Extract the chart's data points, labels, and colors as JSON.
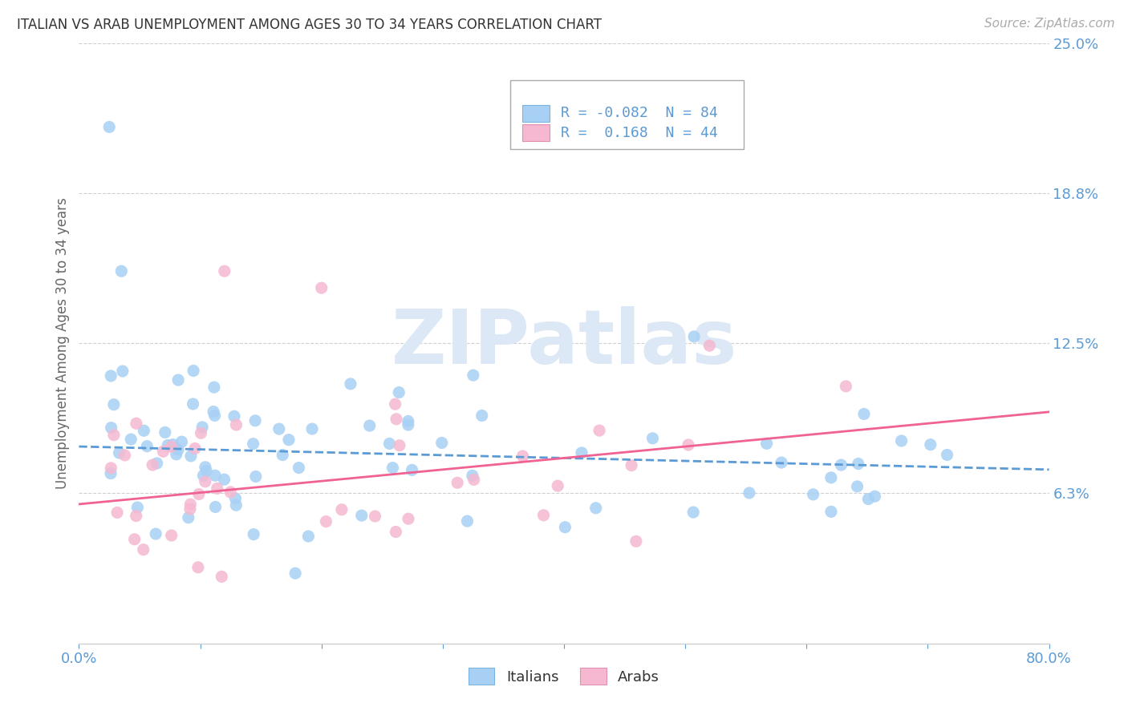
{
  "title": "ITALIAN VS ARAB UNEMPLOYMENT AMONG AGES 30 TO 34 YEARS CORRELATION CHART",
  "source": "Source: ZipAtlas.com",
  "ylabel": "Unemployment Among Ages 30 to 34 years",
  "xlim": [
    0.0,
    0.8
  ],
  "ylim": [
    0.0,
    0.25
  ],
  "ytick_positions": [
    0.0,
    0.0625,
    0.125,
    0.1875,
    0.25
  ],
  "ytick_labels": [
    "",
    "6.3%",
    "12.5%",
    "18.8%",
    "25.0%"
  ],
  "xtick_positions": [
    0.0,
    0.1,
    0.2,
    0.3,
    0.4,
    0.5,
    0.6,
    0.7,
    0.8
  ],
  "xtick_labels": [
    "0.0%",
    "",
    "",
    "",
    "",
    "",
    "",
    "",
    "80.0%"
  ],
  "legend_r_italian": "-0.082",
  "legend_n_italian": "84",
  "legend_r_arab": "0.168",
  "legend_n_arab": "44",
  "italian_color": "#a8d0f5",
  "arab_color": "#f5b8d0",
  "trend_italian_color": "#5b9bd5",
  "trend_arab_color": "#f06292",
  "watermark_text": "ZIPatlas",
  "background_color": "#ffffff",
  "grid_color": "#d0d0d0",
  "title_color": "#333333",
  "source_color": "#aaaaaa",
  "tick_color": "#5b9bd5",
  "ylabel_color": "#666666",
  "legend_text_color": "#5b9bd5",
  "legend_label_color": "#333333",
  "watermark_color": "#dce8f5",
  "italian_trend_intercept": 0.082,
  "italian_trend_slope": -0.012,
  "arab_trend_intercept": 0.058,
  "arab_trend_slope": 0.048
}
